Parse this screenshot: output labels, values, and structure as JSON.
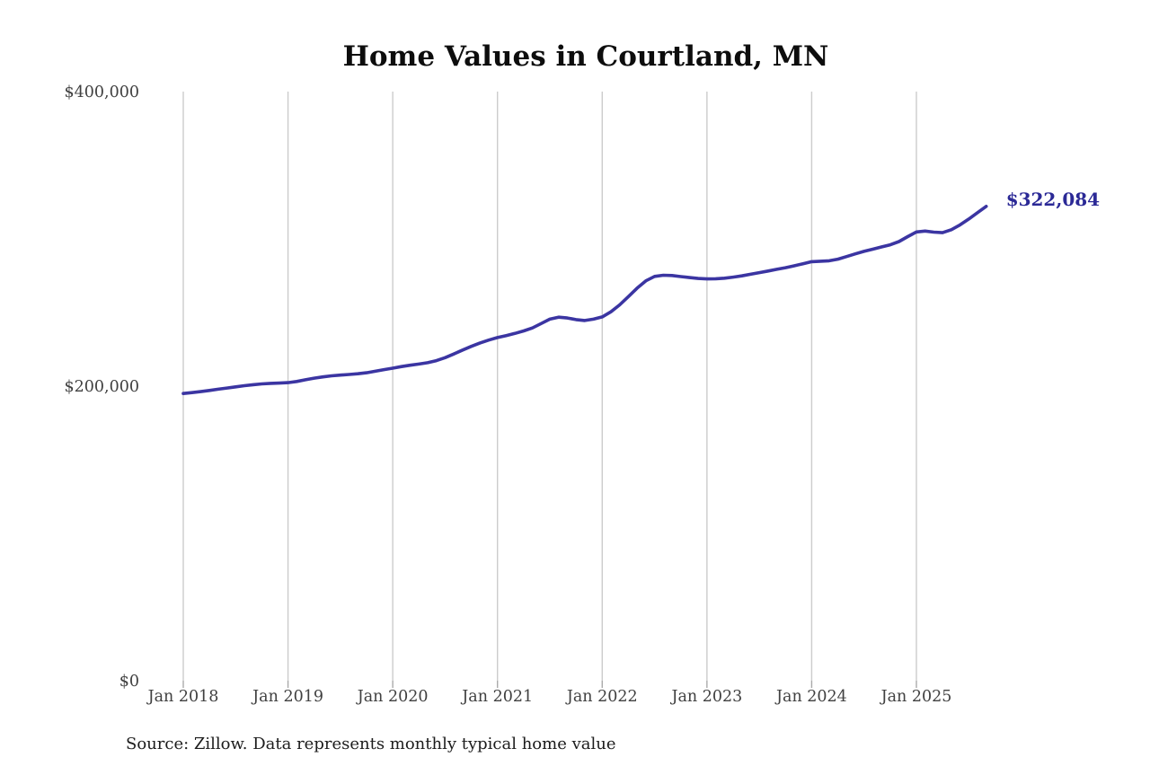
{
  "chart_data": {
    "type": "line",
    "title": "Home Values in Courtland, MN",
    "source_note": "Source: Zillow. Data represents monthly typical home value",
    "series_name": "Monthly typical home value",
    "frequency": "monthly",
    "start_month": "2018-01",
    "end_month": "2025-09",
    "last_value": 322084,
    "last_value_label": "$322,084",
    "ylim": [
      0,
      400000
    ],
    "grid": "vertical-only",
    "legend": "none",
    "colors": {
      "line": "#3b35a2",
      "annotation": "#2b2996",
      "grid": "#cccccc",
      "tick_mark": "#aaaaaa",
      "axis_label": "#404040",
      "title": "#0d0d0d",
      "source": "#1c1c1c",
      "background": "#ffffff"
    },
    "y_ticks": [
      {
        "value": 0,
        "label": "$0"
      },
      {
        "value": 200000,
        "label": "$200,000"
      },
      {
        "value": 400000,
        "label": "$400,000"
      }
    ],
    "x_ticks": [
      {
        "month_index": 0,
        "label": "Jan 2018"
      },
      {
        "month_index": 12,
        "label": "Jan 2019"
      },
      {
        "month_index": 24,
        "label": "Jan 2020"
      },
      {
        "month_index": 36,
        "label": "Jan 2021"
      },
      {
        "month_index": 48,
        "label": "Jan 2022"
      },
      {
        "month_index": 60,
        "label": "Jan 2023"
      },
      {
        "month_index": 72,
        "label": "Jan 2024"
      },
      {
        "month_index": 84,
        "label": "Jan 2025"
      }
    ],
    "values": [
      195000,
      195600,
      196300,
      197100,
      197900,
      198700,
      199500,
      200300,
      201000,
      201500,
      201900,
      202100,
      202400,
      203200,
      204300,
      205400,
      206300,
      207000,
      207500,
      207900,
      208400,
      209100,
      210100,
      211200,
      212200,
      213300,
      214200,
      215000,
      215900,
      217300,
      219300,
      221800,
      224500,
      227000,
      229300,
      231300,
      233000,
      234300,
      235800,
      237500,
      239500,
      242500,
      245500,
      246800,
      246300,
      245200,
      244600,
      245500,
      247000,
      250500,
      255200,
      260800,
      266500,
      271500,
      274500,
      275300,
      275100,
      274400,
      273700,
      273100,
      272800,
      272900,
      273300,
      274000,
      274900,
      276000,
      277100,
      278200,
      279300,
      280400,
      281700,
      283100,
      284500,
      284800,
      285100,
      286200,
      288000,
      289800,
      291500,
      293000,
      294500,
      296000,
      298200,
      301500,
      304700,
      305300,
      304600,
      304200,
      306200,
      309500,
      313500,
      317800,
      322084
    ]
  }
}
